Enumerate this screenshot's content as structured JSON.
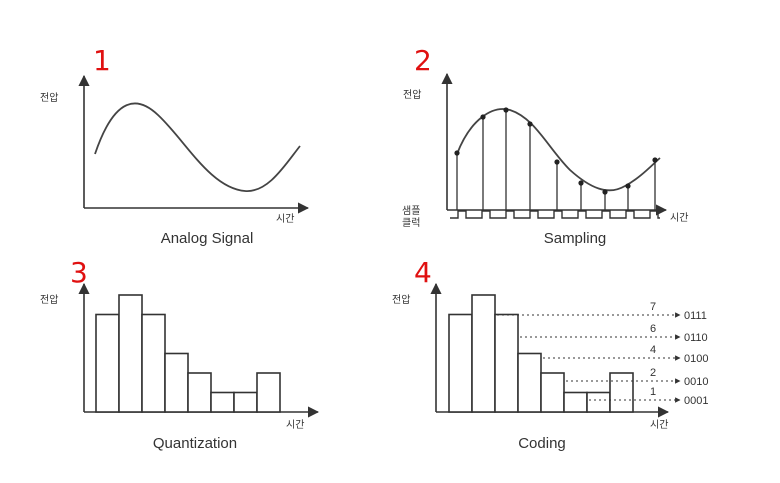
{
  "markers": [
    "1",
    "2",
    "3",
    "4"
  ],
  "labels": {
    "y_axis": "전압",
    "x_axis": "시간",
    "sample_clock": "샘플\n클럭"
  },
  "panels": {
    "analog": {
      "caption": "Analog Signal"
    },
    "sampling": {
      "caption": "Sampling"
    },
    "quantization": {
      "caption": "Quantization"
    },
    "coding": {
      "caption": "Coding"
    }
  },
  "bars": [
    5,
    6,
    5,
    3,
    2,
    1,
    1,
    2
  ],
  "levels": [
    {
      "level": "7",
      "code": "0111"
    },
    {
      "level": "6",
      "code": "0110"
    },
    {
      "level": "4",
      "code": "0100"
    },
    {
      "level": "2",
      "code": "0010"
    },
    {
      "level": "1",
      "code": "0001"
    }
  ],
  "colors": {
    "ink": "#333333",
    "marker": "#e01010"
  }
}
